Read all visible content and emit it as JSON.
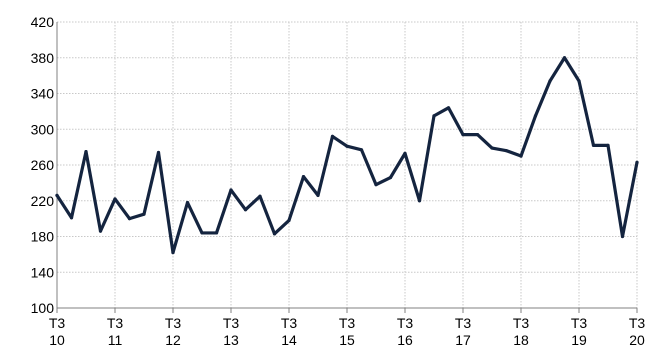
{
  "colors": {
    "series": "#14243f",
    "grid": "#c8c8c8",
    "axis": "#808080",
    "background": "#ffffff"
  },
  "chart_data": {
    "type": "line",
    "title": "",
    "xlabel": "",
    "ylabel": "",
    "grid": true,
    "ylim": [
      100,
      420
    ],
    "yticks": [
      100,
      140,
      180,
      220,
      260,
      300,
      340,
      380,
      420
    ],
    "x_tick_labels": [
      [
        "T3",
        "10"
      ],
      [
        "T3",
        "11"
      ],
      [
        "T3",
        "12"
      ],
      [
        "T3",
        "13"
      ],
      [
        "T3",
        "14"
      ],
      [
        "T3",
        "15"
      ],
      [
        "T3",
        "16"
      ],
      [
        "T3",
        "17"
      ],
      [
        "T3",
        "18"
      ],
      [
        "T3",
        "19"
      ],
      [
        "T3",
        "20"
      ]
    ],
    "points_per_tick": 4,
    "series": [
      {
        "values": [
          226,
          201,
          275,
          186,
          222,
          200,
          205,
          274,
          162,
          218,
          184,
          184,
          232,
          210,
          225,
          183,
          198,
          247,
          226,
          292,
          281,
          277,
          238,
          246,
          273,
          220,
          315,
          324,
          294,
          294,
          279,
          276,
          270,
          315,
          354,
          380,
          354,
          282,
          282,
          180,
          263
        ]
      }
    ]
  }
}
